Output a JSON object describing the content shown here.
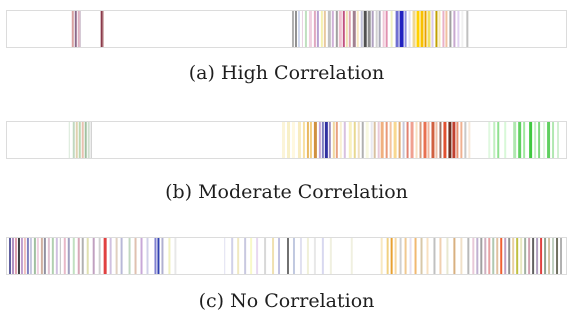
{
  "panels": [
    {
      "caption": "(a) High Correlation",
      "stripes": [
        {
          "x": 65,
          "w": 2,
          "c": "#d9a0a0"
        },
        {
          "x": 68,
          "w": 2,
          "c": "#8c6a8a"
        },
        {
          "x": 71,
          "w": 2,
          "c": "#e0b0c0"
        },
        {
          "x": 73,
          "w": 1,
          "c": "#c8b8c8"
        },
        {
          "x": 94,
          "w": 2,
          "c": "#8a3a4a"
        },
        {
          "x": 96,
          "w": 1,
          "c": "#c09090"
        },
        {
          "x": 286,
          "w": 2,
          "c": "#b0b0b0"
        },
        {
          "x": 289,
          "w": 2,
          "c": "#909090"
        },
        {
          "x": 292,
          "w": 2,
          "c": "#d0d8f0"
        },
        {
          "x": 296,
          "w": 1,
          "c": "#e8d0e0"
        },
        {
          "x": 299,
          "w": 2,
          "c": "#c0e0c0"
        },
        {
          "x": 303,
          "w": 3,
          "c": "#f0d0e0"
        },
        {
          "x": 308,
          "w": 2,
          "c": "#e0a8c0"
        },
        {
          "x": 311,
          "w": 2,
          "c": "#b8a0d0"
        },
        {
          "x": 315,
          "w": 2,
          "c": "#f4f0b0"
        },
        {
          "x": 318,
          "w": 2,
          "c": "#e8c8a0"
        },
        {
          "x": 322,
          "w": 3,
          "c": "#c0c0c0"
        },
        {
          "x": 326,
          "w": 2,
          "c": "#d0b0d8"
        },
        {
          "x": 330,
          "w": 2,
          "c": "#a0a0a0"
        },
        {
          "x": 333,
          "w": 3,
          "c": "#f0c0d0"
        },
        {
          "x": 337,
          "w": 2,
          "c": "#c05080"
        },
        {
          "x": 340,
          "w": 2,
          "c": "#f0e0b0"
        },
        {
          "x": 343,
          "w": 2,
          "c": "#e0a0b0"
        },
        {
          "x": 347,
          "w": 3,
          "c": "#a08090"
        },
        {
          "x": 351,
          "w": 2,
          "c": "#f8e8c0"
        },
        {
          "x": 355,
          "w": 2,
          "c": "#c0c0d8"
        },
        {
          "x": 358,
          "w": 3,
          "c": "#505050"
        },
        {
          "x": 362,
          "w": 3,
          "c": "#909090"
        },
        {
          "x": 366,
          "w": 2,
          "c": "#b0a0c0"
        },
        {
          "x": 370,
          "w": 2,
          "c": "#d0d0d0"
        },
        {
          "x": 373,
          "w": 2,
          "c": "#a8a8b8"
        },
        {
          "x": 377,
          "w": 2,
          "c": "#f0c8d8"
        },
        {
          "x": 380,
          "w": 2,
          "c": "#e090b0"
        },
        {
          "x": 385,
          "w": 2,
          "c": "#f0f0c0"
        },
        {
          "x": 390,
          "w": 3,
          "c": "#7070d0"
        },
        {
          "x": 394,
          "w": 4,
          "c": "#2020c0"
        },
        {
          "x": 399,
          "w": 2,
          "c": "#9090e0"
        },
        {
          "x": 403,
          "w": 2,
          "c": "#e0e0f0"
        },
        {
          "x": 407,
          "w": 3,
          "c": "#f0d890"
        },
        {
          "x": 411,
          "w": 3,
          "c": "#ffd000"
        },
        {
          "x": 415,
          "w": 3,
          "c": "#f8c000"
        },
        {
          "x": 419,
          "w": 2,
          "c": "#e8a000"
        },
        {
          "x": 422,
          "w": 3,
          "c": "#f0e060"
        },
        {
          "x": 426,
          "w": 2,
          "c": "#d8c8e8"
        },
        {
          "x": 430,
          "w": 2,
          "c": "#c0a000"
        },
        {
          "x": 433,
          "w": 2,
          "c": "#f8e8b0"
        },
        {
          "x": 437,
          "w": 2,
          "c": "#e8b0c8"
        },
        {
          "x": 440,
          "w": 2,
          "c": "#f0c0a0"
        },
        {
          "x": 444,
          "w": 2,
          "c": "#a0a0a0"
        },
        {
          "x": 448,
          "w": 2,
          "c": "#c8a8d0"
        },
        {
          "x": 452,
          "w": 2,
          "c": "#e0d0f0"
        },
        {
          "x": 456,
          "w": 2,
          "c": "#f0f0f0"
        },
        {
          "x": 461,
          "w": 2,
          "c": "#c0c0c0"
        }
      ]
    },
    {
      "caption": "(b) Moderate Correlation",
      "stripes": [
        {
          "x": 62,
          "w": 1,
          "c": "#d8e8d8"
        },
        {
          "x": 66,
          "w": 2,
          "c": "#c0d8c0"
        },
        {
          "x": 69,
          "w": 2,
          "c": "#e0d0b0"
        },
        {
          "x": 72,
          "w": 2,
          "c": "#b8d8b0"
        },
        {
          "x": 75,
          "w": 2,
          "c": "#e8c0b0"
        },
        {
          "x": 78,
          "w": 2,
          "c": "#a0c0a0"
        },
        {
          "x": 81,
          "w": 2,
          "c": "#d0e0d0"
        },
        {
          "x": 84,
          "w": 1,
          "c": "#c0c0c0"
        },
        {
          "x": 276,
          "w": 3,
          "c": "#fbf4d8"
        },
        {
          "x": 281,
          "w": 3,
          "c": "#f8f0c8"
        },
        {
          "x": 286,
          "w": 3,
          "c": "#fff8e0"
        },
        {
          "x": 292,
          "w": 3,
          "c": "#f8ecc0"
        },
        {
          "x": 297,
          "w": 2,
          "c": "#f8e0a0"
        },
        {
          "x": 301,
          "w": 2,
          "c": "#e8b860"
        },
        {
          "x": 304,
          "w": 2,
          "c": "#f4d080"
        },
        {
          "x": 308,
          "w": 3,
          "c": "#d09040"
        },
        {
          "x": 313,
          "w": 2,
          "c": "#c8a8d8"
        },
        {
          "x": 316,
          "w": 2,
          "c": "#8080c0"
        },
        {
          "x": 319,
          "w": 3,
          "c": "#3030a0"
        },
        {
          "x": 323,
          "w": 2,
          "c": "#a090c0"
        },
        {
          "x": 327,
          "w": 2,
          "c": "#f0d8a0"
        },
        {
          "x": 330,
          "w": 2,
          "c": "#e8a080"
        },
        {
          "x": 334,
          "w": 2,
          "c": "#f8f0d0"
        },
        {
          "x": 338,
          "w": 2,
          "c": "#d8c0e0"
        },
        {
          "x": 343,
          "w": 3,
          "c": "#f8f0c0"
        },
        {
          "x": 348,
          "w": 2,
          "c": "#e8d890"
        },
        {
          "x": 352,
          "w": 2,
          "c": "#f0e0c0"
        },
        {
          "x": 356,
          "w": 2,
          "c": "#b0b0b0"
        },
        {
          "x": 360,
          "w": 3,
          "c": "#f8f8e0"
        },
        {
          "x": 365,
          "w": 2,
          "c": "#e8e8f0"
        },
        {
          "x": 368,
          "w": 2,
          "c": "#d8c0a0"
        },
        {
          "x": 372,
          "w": 2,
          "c": "#e8c8d8"
        },
        {
          "x": 375,
          "w": 3,
          "c": "#f0b080"
        },
        {
          "x": 380,
          "w": 2,
          "c": "#e89878"
        },
        {
          "x": 384,
          "w": 2,
          "c": "#f4c4a0"
        },
        {
          "x": 388,
          "w": 3,
          "c": "#f8d890"
        },
        {
          "x": 393,
          "w": 2,
          "c": "#e0a870"
        },
        {
          "x": 397,
          "w": 2,
          "c": "#c8c8d8"
        },
        {
          "x": 401,
          "w": 2,
          "c": "#e08070"
        },
        {
          "x": 405,
          "w": 3,
          "c": "#f0a090"
        },
        {
          "x": 410,
          "w": 2,
          "c": "#f8e0c0"
        },
        {
          "x": 414,
          "w": 2,
          "c": "#d89878"
        },
        {
          "x": 418,
          "w": 3,
          "c": "#e87050"
        },
        {
          "x": 422,
          "w": 2,
          "c": "#f0b8a0"
        },
        {
          "x": 426,
          "w": 3,
          "c": "#d06040"
        },
        {
          "x": 430,
          "w": 2,
          "c": "#f0c0a8"
        },
        {
          "x": 434,
          "w": 2,
          "c": "#a07060"
        },
        {
          "x": 438,
          "w": 3,
          "c": "#e05030"
        },
        {
          "x": 443,
          "w": 3,
          "c": "#703020"
        },
        {
          "x": 447,
          "w": 3,
          "c": "#c04030"
        },
        {
          "x": 451,
          "w": 2,
          "c": "#e89070"
        },
        {
          "x": 455,
          "w": 2,
          "c": "#f0b090"
        },
        {
          "x": 459,
          "w": 2,
          "c": "#c8c8c8"
        },
        {
          "x": 463,
          "w": 2,
          "c": "#f8e8d8"
        },
        {
          "x": 483,
          "w": 2,
          "c": "#e0f8e0"
        },
        {
          "x": 488,
          "w": 2,
          "c": "#c0f0c0"
        },
        {
          "x": 492,
          "w": 2,
          "c": "#90e090"
        },
        {
          "x": 499,
          "w": 2,
          "c": "#d8f8d8"
        },
        {
          "x": 508,
          "w": 3,
          "c": "#b0e8b0"
        },
        {
          "x": 513,
          "w": 3,
          "c": "#60d060"
        },
        {
          "x": 518,
          "w": 2,
          "c": "#a0e8a0"
        },
        {
          "x": 524,
          "w": 3,
          "c": "#40c840"
        },
        {
          "x": 529,
          "w": 2,
          "c": "#c8f0c8"
        },
        {
          "x": 533,
          "w": 2,
          "c": "#80d880"
        },
        {
          "x": 538,
          "w": 2,
          "c": "#e0f8e0"
        },
        {
          "x": 542,
          "w": 3,
          "c": "#60d060"
        },
        {
          "x": 547,
          "w": 2,
          "c": "#b0e8b0"
        },
        {
          "x": 552,
          "w": 2,
          "c": "#d0f0d0"
        }
      ]
    },
    {
      "caption": "(c) No Correlation",
      "stripes": [
        {
          "x": 2,
          "w": 2,
          "c": "#6060a0"
        },
        {
          "x": 5,
          "w": 2,
          "c": "#b090c0"
        },
        {
          "x": 8,
          "w": 2,
          "c": "#e0a0b0"
        },
        {
          "x": 11,
          "w": 2,
          "c": "#404040"
        },
        {
          "x": 14,
          "w": 2,
          "c": "#c0a0d0"
        },
        {
          "x": 17,
          "w": 2,
          "c": "#f0c0c0"
        },
        {
          "x": 20,
          "w": 2,
          "c": "#8080c0"
        },
        {
          "x": 23,
          "w": 2,
          "c": "#c8c8e0"
        },
        {
          "x": 27,
          "w": 2,
          "c": "#a0c0a0"
        },
        {
          "x": 30,
          "w": 2,
          "c": "#f0d0e0"
        },
        {
          "x": 34,
          "w": 2,
          "c": "#d0b0a0"
        },
        {
          "x": 37,
          "w": 2,
          "c": "#9090a0"
        },
        {
          "x": 41,
          "w": 2,
          "c": "#e0c0d0"
        },
        {
          "x": 45,
          "w": 2,
          "c": "#b0d0b0"
        },
        {
          "x": 49,
          "w": 2,
          "c": "#d0c0e0"
        },
        {
          "x": 53,
          "w": 1,
          "c": "#c0c0c0"
        },
        {
          "x": 57,
          "w": 2,
          "c": "#e8b8c8"
        },
        {
          "x": 61,
          "w": 2,
          "c": "#a0a0c0"
        },
        {
          "x": 66,
          "w": 2,
          "c": "#c0e0c0"
        },
        {
          "x": 71,
          "w": 2,
          "c": "#d8a8b8"
        },
        {
          "x": 75,
          "w": 2,
          "c": "#b0b0b0"
        },
        {
          "x": 80,
          "w": 2,
          "c": "#e0e0b0"
        },
        {
          "x": 86,
          "w": 2,
          "c": "#c0a0c0"
        },
        {
          "x": 92,
          "w": 2,
          "c": "#d0d0d0"
        },
        {
          "x": 97,
          "w": 3,
          "c": "#e04040"
        },
        {
          "x": 103,
          "w": 2,
          "c": "#d0c0e0"
        },
        {
          "x": 109,
          "w": 2,
          "c": "#e0d0c0"
        },
        {
          "x": 114,
          "w": 2,
          "c": "#b8b8d8"
        },
        {
          "x": 122,
          "w": 2,
          "c": "#c0d8c0"
        },
        {
          "x": 128,
          "w": 2,
          "c": "#e0c0b0"
        },
        {
          "x": 134,
          "w": 2,
          "c": "#c8a8d8"
        },
        {
          "x": 140,
          "w": 2,
          "c": "#d0d0e8"
        },
        {
          "x": 148,
          "w": 2,
          "c": "#8080d0"
        },
        {
          "x": 151,
          "w": 2,
          "c": "#3040b0"
        },
        {
          "x": 155,
          "w": 2,
          "c": "#b0b0d0"
        },
        {
          "x": 162,
          "w": 2,
          "c": "#f0f0c0"
        },
        {
          "x": 168,
          "w": 2,
          "c": "#e8e8e8"
        },
        {
          "x": 218,
          "w": 1,
          "c": "#e0e0f0"
        },
        {
          "x": 225,
          "w": 2,
          "c": "#d0d0e8"
        },
        {
          "x": 231,
          "w": 2,
          "c": "#f0e8c0"
        },
        {
          "x": 238,
          "w": 2,
          "c": "#c8c8e0"
        },
        {
          "x": 244,
          "w": 2,
          "c": "#f8f8c8"
        },
        {
          "x": 250,
          "w": 2,
          "c": "#e8d8f0"
        },
        {
          "x": 258,
          "w": 2,
          "c": "#d8d8d8"
        },
        {
          "x": 266,
          "w": 2,
          "c": "#f0e0b0"
        },
        {
          "x": 272,
          "w": 2,
          "c": "#c0c0e0"
        },
        {
          "x": 281,
          "w": 2,
          "c": "#707070"
        },
        {
          "x": 287,
          "w": 2,
          "c": "#c0c8e0"
        },
        {
          "x": 294,
          "w": 2,
          "c": "#e0e0f0"
        },
        {
          "x": 301,
          "w": 2,
          "c": "#f0f0d8"
        },
        {
          "x": 308,
          "w": 2,
          "c": "#e8e8e8"
        },
        {
          "x": 316,
          "w": 2,
          "c": "#d8d8f0"
        },
        {
          "x": 324,
          "w": 2,
          "c": "#f0f0e0"
        },
        {
          "x": 345,
          "w": 2,
          "c": "#f0f0e0"
        },
        {
          "x": 375,
          "w": 2,
          "c": "#f8e8c0"
        },
        {
          "x": 381,
          "w": 2,
          "c": "#f0d080"
        },
        {
          "x": 385,
          "w": 2,
          "c": "#e8a030"
        },
        {
          "x": 389,
          "w": 2,
          "c": "#f8d8a0"
        },
        {
          "x": 394,
          "w": 2,
          "c": "#d0d0d0"
        },
        {
          "x": 399,
          "w": 2,
          "c": "#f0c890"
        },
        {
          "x": 404,
          "w": 2,
          "c": "#e8e0f0"
        },
        {
          "x": 409,
          "w": 2,
          "c": "#f0b870"
        },
        {
          "x": 415,
          "w": 2,
          "c": "#d8c8a8"
        },
        {
          "x": 421,
          "w": 2,
          "c": "#f8e0c0"
        },
        {
          "x": 428,
          "w": 2,
          "c": "#c0c0c0"
        },
        {
          "x": 434,
          "w": 2,
          "c": "#f0d0b0"
        },
        {
          "x": 441,
          "w": 2,
          "c": "#e8e8d0"
        },
        {
          "x": 448,
          "w": 2,
          "c": "#d8b080"
        },
        {
          "x": 455,
          "w": 2,
          "c": "#f0e0c8"
        },
        {
          "x": 462,
          "w": 2,
          "c": "#b8b8b8"
        },
        {
          "x": 467,
          "w": 2,
          "c": "#e8c8d8"
        },
        {
          "x": 471,
          "w": 2,
          "c": "#c0b0d0"
        },
        {
          "x": 475,
          "w": 2,
          "c": "#a0a0a0"
        },
        {
          "x": 479,
          "w": 2,
          "c": "#d0b0c0"
        },
        {
          "x": 483,
          "w": 2,
          "c": "#e8a0a0"
        },
        {
          "x": 487,
          "w": 2,
          "c": "#b0c8b0"
        },
        {
          "x": 491,
          "w": 2,
          "c": "#e0c0a0"
        },
        {
          "x": 495,
          "w": 2,
          "c": "#f06030"
        },
        {
          "x": 499,
          "w": 2,
          "c": "#c0a0c0"
        },
        {
          "x": 503,
          "w": 2,
          "c": "#909090"
        },
        {
          "x": 507,
          "w": 2,
          "c": "#e8d0a0"
        },
        {
          "x": 511,
          "w": 2,
          "c": "#c0c040"
        },
        {
          "x": 515,
          "w": 2,
          "c": "#e8e8c0"
        },
        {
          "x": 519,
          "w": 2,
          "c": "#a0b0a0"
        },
        {
          "x": 523,
          "w": 2,
          "c": "#d0a0b0"
        },
        {
          "x": 527,
          "w": 2,
          "c": "#606060"
        },
        {
          "x": 531,
          "w": 2,
          "c": "#b0a0c0"
        },
        {
          "x": 535,
          "w": 2,
          "c": "#e04040"
        },
        {
          "x": 539,
          "w": 2,
          "c": "#90a090"
        },
        {
          "x": 543,
          "w": 2,
          "c": "#d0c0a0"
        },
        {
          "x": 547,
          "w": 2,
          "c": "#c0d0c0"
        },
        {
          "x": 551,
          "w": 2,
          "c": "#707060"
        },
        {
          "x": 555,
          "w": 2,
          "c": "#b0b0b0"
        }
      ]
    }
  ]
}
